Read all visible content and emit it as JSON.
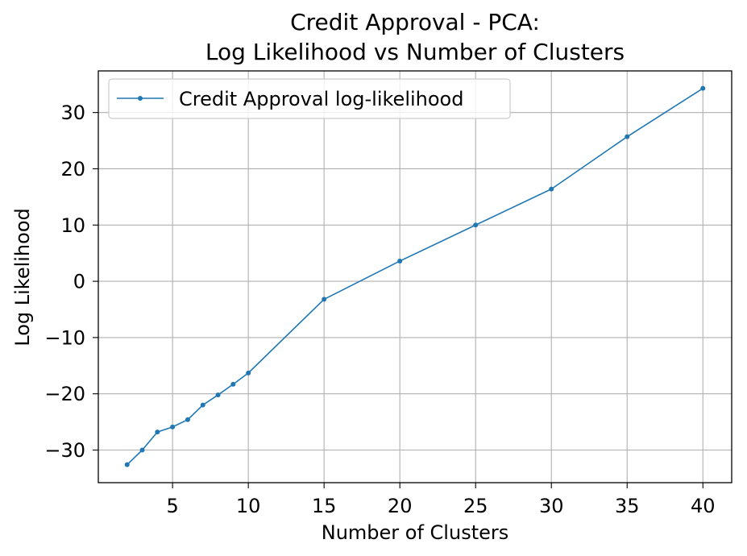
{
  "chart_data": {
    "type": "line",
    "title_lines": [
      "Credit Approval - PCA:",
      "Log Likelihood vs Number of Clusters"
    ],
    "xlabel": "Number of Clusters",
    "ylabel": "Log Likelihood",
    "xlim": [
      0.1,
      41.9
    ],
    "ylim": [
      -35.8,
      37.4
    ],
    "xticks": [
      5,
      10,
      15,
      20,
      25,
      30,
      35,
      40
    ],
    "xtick_labels": [
      "5",
      "10",
      "15",
      "20",
      "25",
      "30",
      "35",
      "40"
    ],
    "yticks": [
      -30,
      -20,
      -10,
      0,
      10,
      20,
      30
    ],
    "ytick_labels": [
      "−30",
      "−20",
      "−10",
      "0",
      "10",
      "20",
      "30"
    ],
    "grid": true,
    "legend_position": "top-left",
    "series": [
      {
        "name": "Credit Approval log-likelihood",
        "color": "#1f77b4",
        "marker": "dot",
        "x": [
          2,
          3,
          4,
          5,
          6,
          7,
          8,
          9,
          10,
          15,
          20,
          25,
          30,
          35,
          40
        ],
        "y": [
          -32.6,
          -30.0,
          -26.8,
          -25.9,
          -24.6,
          -22.0,
          -20.2,
          -18.3,
          -16.3,
          -3.2,
          3.6,
          10.0,
          16.4,
          25.7,
          34.3
        ]
      }
    ]
  }
}
